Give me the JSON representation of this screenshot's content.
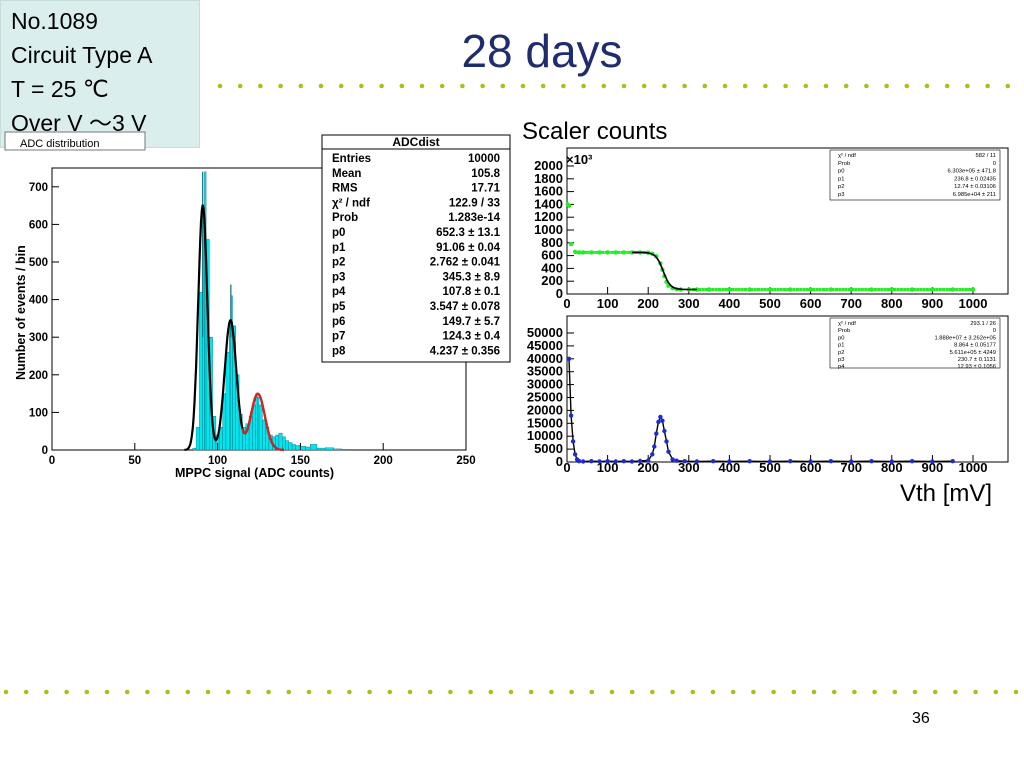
{
  "slide": {
    "title": "28 days",
    "info_lines": [
      "No.1089",
      "Circuit Type A",
      "T = 25 ℃",
      "Over V ～3 V"
    ],
    "scaler_label": "Scaler counts",
    "vth_label": "Vth [mV]",
    "page_number": "36",
    "hist_title_fragment": "ADC distribution",
    "colors": {
      "title": "#1f2d6e",
      "dots": "#a3c31c",
      "info_bg": "#dbeeee"
    }
  },
  "stats_adc": {
    "title": "ADCdist",
    "rows": [
      {
        "k": "Entries",
        "v": "10000"
      },
      {
        "k": "Mean",
        "v": "105.8"
      },
      {
        "k": "RMS",
        "v": "17.71"
      },
      {
        "k": "χ² / ndf",
        "v": "122.9 / 33"
      },
      {
        "k": "Prob",
        "v": "1.283e-14"
      },
      {
        "k": "p0",
        "v": "652.3 ± 13.1"
      },
      {
        "k": "p1",
        "v": "91.06 ± 0.04"
      },
      {
        "k": "p2",
        "v": "2.762 ± 0.041"
      },
      {
        "k": "p3",
        "v": "345.3 ± 8.9"
      },
      {
        "k": "p4",
        "v": "107.8 ± 0.1"
      },
      {
        "k": "p5",
        "v": "3.547 ± 0.078"
      },
      {
        "k": "p6",
        "v": "149.7 ± 5.7"
      },
      {
        "k": "p7",
        "v": "124.3 ± 0.4"
      },
      {
        "k": "p8",
        "v": "4.237 ± 0.356"
      }
    ]
  },
  "stats_scaler": {
    "rows": [
      {
        "k": "χ² / ndf",
        "v": "582 / 11"
      },
      {
        "k": "Prob",
        "v": "0"
      },
      {
        "k": "p0",
        "v": "6.303e+05 ± 471.8"
      },
      {
        "k": "p1",
        "v": "236.8 ± 0.02435"
      },
      {
        "k": "p2",
        "v": "12.74 ± 0.03106"
      },
      {
        "k": "p3",
        "v": "6.985e+04 ± 211"
      }
    ]
  },
  "stats_deriv": {
    "rows": [
      {
        "k": "χ² / ndf",
        "v": "293.1 / 26"
      },
      {
        "k": "Prob",
        "v": "0"
      },
      {
        "k": "p0",
        "v": "1.888e+07 ± 3.262e+05"
      },
      {
        "k": "p1",
        "v": "8.864 ± 0.05177"
      },
      {
        "k": "p2",
        "v": "5.611e+05 ± 4249"
      },
      {
        "k": "p3",
        "v": "230.7 ± 0.1131"
      },
      {
        "k": "p4",
        "v": "12.93 ± 0.1056"
      }
    ]
  },
  "chart_data": [
    {
      "type": "area",
      "name": "ADCdist",
      "xlabel": "MPPC signal (ADC counts)",
      "ylabel": "Number of events / bin",
      "xlim": [
        0,
        250
      ],
      "ylim": [
        0,
        750
      ],
      "xticks": [
        0,
        50,
        100,
        150,
        200,
        250
      ],
      "yticks": [
        0,
        100,
        200,
        300,
        400,
        500,
        600,
        700
      ],
      "x": [
        82,
        85,
        87,
        89,
        91,
        92,
        93,
        95,
        97,
        99,
        101,
        103,
        105,
        107,
        108,
        109,
        111,
        113,
        115,
        117,
        119,
        121,
        123,
        124,
        125,
        127,
        129,
        131,
        133,
        135,
        137,
        139,
        141,
        143,
        145,
        147,
        150,
        153,
        156,
        160,
        165,
        170,
        175,
        180
      ],
      "values": [
        0,
        5,
        60,
        420,
        620,
        740,
        560,
        300,
        90,
        40,
        60,
        150,
        260,
        330,
        410,
        330,
        200,
        95,
        60,
        70,
        90,
        120,
        150,
        140,
        120,
        80,
        60,
        40,
        35,
        40,
        45,
        35,
        25,
        20,
        15,
        12,
        10,
        8,
        15,
        5,
        6,
        3,
        2,
        0
      ],
      "fit": {
        "color": "#000000",
        "peaks": [
          {
            "amp": 652.3,
            "mean": 91.06,
            "sigma": 2.762
          },
          {
            "amp": 345.3,
            "mean": 107.8,
            "sigma": 3.547
          },
          {
            "amp": 149.7,
            "mean": 124.3,
            "sigma": 4.237
          }
        ]
      },
      "fill_color": "#00e5ee"
    },
    {
      "type": "scatter",
      "name": "Scaler counts",
      "xlim": [
        0,
        1000
      ],
      "ylim": [
        0,
        2000
      ],
      "xticks": [
        0,
        100,
        200,
        300,
        400,
        500,
        600,
        700,
        800,
        900,
        1000
      ],
      "yticks": [
        0,
        200,
        400,
        600,
        800,
        1000,
        1200,
        1400,
        1600,
        1800,
        2000
      ],
      "y_multiplier": "×10³",
      "x": [
        2,
        5,
        10,
        20,
        30,
        40,
        60,
        80,
        100,
        120,
        140,
        160,
        180,
        200,
        210,
        220,
        230,
        235,
        240,
        245,
        250,
        260,
        270,
        280,
        300,
        320,
        350,
        400,
        450,
        500,
        550,
        600,
        650,
        700,
        750,
        800,
        850,
        900,
        950,
        1000
      ],
      "values": [
        1400,
        1380,
        780,
        660,
        650,
        650,
        650,
        650,
        650,
        650,
        650,
        650,
        650,
        645,
        630,
        590,
        480,
        380,
        280,
        190,
        130,
        90,
        75,
        70,
        70,
        70,
        70,
        70,
        70,
        70,
        70,
        70,
        70,
        70,
        70,
        70,
        70,
        70,
        70,
        70
      ],
      "color": "#22ee22"
    },
    {
      "type": "scatter",
      "name": "derivative",
      "xlim": [
        0,
        1000
      ],
      "ylim": [
        0,
        50000
      ],
      "xticks": [
        0,
        100,
        200,
        300,
        400,
        500,
        600,
        700,
        800,
        900,
        1000
      ],
      "yticks": [
        0,
        5000,
        10000,
        15000,
        20000,
        25000,
        30000,
        35000,
        40000,
        45000,
        50000
      ],
      "x": [
        5,
        10,
        15,
        20,
        25,
        30,
        40,
        60,
        80,
        100,
        120,
        140,
        160,
        180,
        200,
        210,
        215,
        220,
        225,
        230,
        235,
        240,
        245,
        250,
        260,
        270,
        290,
        320,
        360,
        400,
        450,
        500,
        550,
        600,
        650,
        700,
        750,
        800,
        850,
        900,
        950
      ],
      "values": [
        40000,
        18000,
        8000,
        3000,
        1000,
        300,
        200,
        300,
        200,
        300,
        200,
        300,
        200,
        400,
        600,
        3000,
        6000,
        11000,
        15500,
        17500,
        16000,
        12000,
        8000,
        4000,
        1000,
        500,
        300,
        200,
        300,
        200,
        300,
        200,
        300,
        200,
        300,
        200,
        300,
        200,
        300,
        200,
        300
      ],
      "color": "#1e2bd0"
    }
  ]
}
